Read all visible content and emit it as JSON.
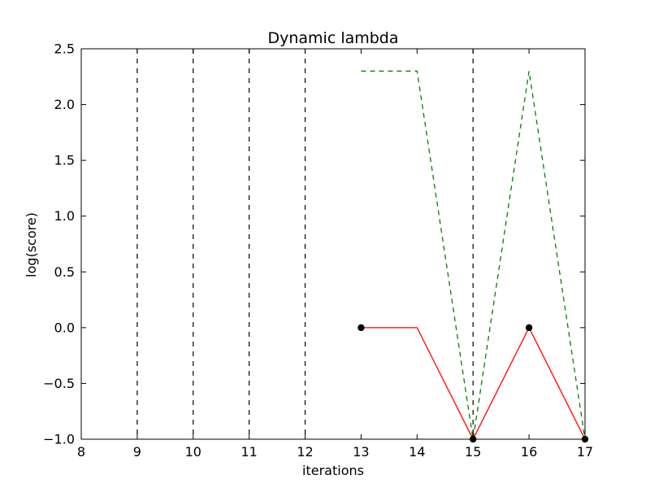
{
  "chart_data": {
    "type": "line",
    "title": "Dynamic lambda",
    "xlabel": "iterations",
    "ylabel": "log(score)",
    "xlim": [
      8,
      17
    ],
    "ylim": [
      -1.0,
      2.5
    ],
    "x_ticks": [
      "8",
      "9",
      "10",
      "11",
      "12",
      "13",
      "14",
      "15",
      "16",
      "17"
    ],
    "y_ticks": [
      "−1.0",
      "−0.5",
      "0.0",
      "0.5",
      "1.0",
      "1.5",
      "2.0",
      "2.5"
    ],
    "grid": false,
    "vertical_markers": [
      9,
      10,
      11,
      12,
      15
    ],
    "series": [
      {
        "style": "solid",
        "color": "#ff0000",
        "x": [
          13,
          14,
          15,
          16,
          17
        ],
        "y": [
          0.0,
          0.0,
          -1.0,
          0.0,
          -1.0
        ]
      },
      {
        "style": "dashed",
        "color": "#008000",
        "x": [
          13,
          14,
          15,
          16,
          17
        ],
        "y": [
          2.3,
          2.3,
          -1.0,
          2.3,
          -1.0
        ]
      }
    ],
    "points": {
      "color": "#000000",
      "x": [
        13,
        15,
        16,
        17
      ],
      "y": [
        0.0,
        -1.0,
        0.0,
        -1.0
      ]
    }
  }
}
